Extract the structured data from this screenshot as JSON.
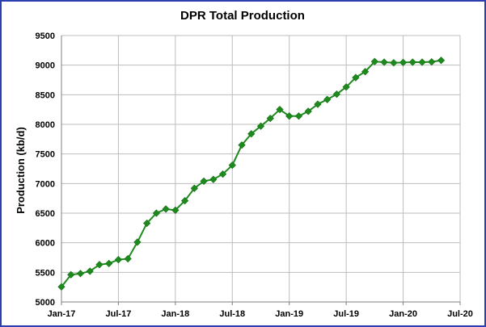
{
  "chart_data": {
    "type": "line",
    "title": "DPR Total  Production",
    "xlabel": "",
    "ylabel": "Production (kb/d)",
    "ylim": [
      5000,
      9500
    ],
    "yticks": [
      "5000",
      "5500",
      "6000",
      "6500",
      "7000",
      "7500",
      "8000",
      "8500",
      "9000",
      "9500"
    ],
    "xticks": [
      "Jan-17",
      "Jul-17",
      "Jan-18",
      "Jul-18",
      "Jan-19",
      "Jul-19",
      "Jan-20",
      "Jul-20"
    ],
    "grid": true,
    "legend": "none",
    "series_color": "#1e8a1e",
    "x_start": "Jan-17",
    "x": [
      "Jan-17",
      "Feb-17",
      "Mar-17",
      "Apr-17",
      "May-17",
      "Jun-17",
      "Jul-17",
      "Aug-17",
      "Sep-17",
      "Oct-17",
      "Nov-17",
      "Dec-17",
      "Jan-18",
      "Feb-18",
      "Mar-18",
      "Apr-18",
      "May-18",
      "Jun-18",
      "Jul-18",
      "Aug-18",
      "Sep-18",
      "Oct-18",
      "Nov-18",
      "Dec-18",
      "Jan-19",
      "Feb-19",
      "Mar-19",
      "Apr-19",
      "May-19",
      "Jun-19",
      "Jul-19",
      "Aug-19",
      "Sep-19",
      "Oct-19",
      "Nov-19",
      "Dec-19",
      "Jan-20",
      "Feb-20",
      "Mar-20",
      "Apr-20",
      "May-20"
    ],
    "values": [
      5255,
      5460,
      5480,
      5520,
      5630,
      5650,
      5715,
      5730,
      6010,
      6330,
      6500,
      6570,
      6550,
      6710,
      6920,
      7040,
      7070,
      7160,
      7310,
      7650,
      7840,
      7970,
      8100,
      8250,
      8140,
      8140,
      8220,
      8340,
      8420,
      8510,
      8630,
      8790,
      8890,
      9060,
      9050,
      9040,
      9045,
      9050,
      9050,
      9055,
      9080
    ]
  }
}
